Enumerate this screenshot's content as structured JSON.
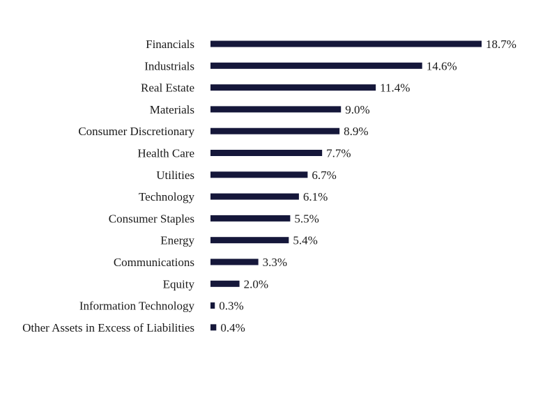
{
  "chart_data": {
    "type": "bar",
    "orientation": "horizontal",
    "categories": [
      "Financials",
      "Industrials",
      "Real Estate",
      "Materials",
      "Consumer Discretionary",
      "Health Care",
      "Utilities",
      "Technology",
      "Consumer Staples",
      "Energy",
      "Communications",
      "Equity",
      "Information Technology",
      "Other Assets in Excess of Liabilities"
    ],
    "values": [
      18.7,
      14.6,
      11.4,
      9.0,
      8.9,
      7.7,
      6.7,
      6.1,
      5.5,
      5.4,
      3.3,
      2.0,
      0.3,
      0.4
    ],
    "value_labels": [
      "18.7%",
      "14.6%",
      "11.4%",
      "9.0%",
      "8.9%",
      "7.7%",
      "6.7%",
      "6.1%",
      "5.5%",
      "5.4%",
      "3.3%",
      "2.0%",
      "0.3%",
      "0.4%"
    ],
    "xlim": [
      0,
      18.7
    ],
    "grid": false,
    "legend": "none",
    "bar_color": "#15173a"
  }
}
